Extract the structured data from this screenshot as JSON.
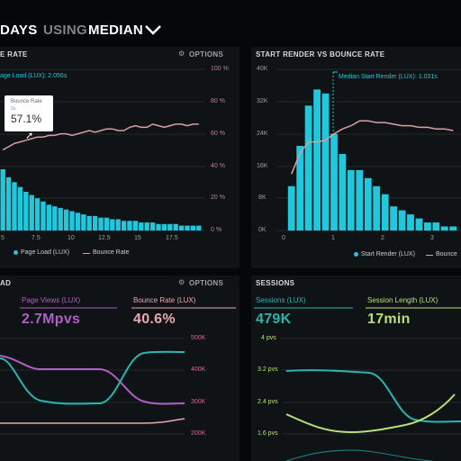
{
  "header": {
    "days": "DAYS",
    "using": "USING",
    "median": "MEDIAN",
    "chevron": "chevron-down"
  },
  "panel_bounce": {
    "title": "E RATE",
    "options": "OPTIONS",
    "subtitle": "age Load (LUX): 2.056s",
    "tooltip_label": "Bounce Rate",
    "tooltip_sub": "2s",
    "tooltip_value": "57.1%",
    "legend": [
      "Page Load (LUX)",
      "Bounce Rate"
    ],
    "x_ticks": [
      "5",
      "7.5",
      "10",
      "12.5",
      "15",
      "17.5"
    ],
    "y_right_ticks": [
      "100 %",
      "80 %",
      "60 %",
      "40 %",
      "20 %",
      "0 %"
    ]
  },
  "panel_render": {
    "title": "START RENDER VS BOUNCE RATE",
    "median_label": "Median Start Render (LUX): 1.031s",
    "legend": [
      "Start Render (LUX)",
      "Bounce"
    ],
    "x_ticks": [
      "0",
      "1",
      "2",
      "3"
    ],
    "y_left_ticks": [
      "40K",
      "32K",
      "24K",
      "16K",
      "8K",
      "0K"
    ]
  },
  "panel_views": {
    "title": "AD",
    "options": "OPTIONS",
    "metric1_label": "Page Views (LUX)",
    "metric1_value": "2.7Mpvs",
    "metric2_label": "Bounce Rate (LUX)",
    "metric2_value": "40.6%",
    "y_right_ticks": [
      "500K",
      "400K",
      "300K",
      "200K"
    ]
  },
  "panel_sessions": {
    "title": "SESSIONS",
    "metric1_label": "Sessions (LUX)",
    "metric1_value": "479K",
    "metric2_label": "Session Length (LUX)",
    "metric2_value": "17min",
    "y_left_ticks": [
      "4 pvs",
      "3.2 pvs",
      "2.4 pvs",
      "1.6 pvs"
    ]
  },
  "colors": {
    "cyan": "#1fc8dc",
    "pink": "#d8a0a4",
    "purple": "#b05fc4",
    "teal": "#28b6b0",
    "green": "#b8e07a",
    "label": "#9aa0a6"
  },
  "chart_data": [
    {
      "type": "bar",
      "title": "",
      "series": [
        {
          "name": "Page Load (LUX)",
          "values": [
            38,
            33,
            30,
            27,
            24,
            22,
            20,
            18,
            16,
            15,
            14,
            13,
            12,
            11,
            10,
            9,
            9,
            8,
            8,
            7,
            7,
            6,
            6,
            6,
            5,
            5,
            5,
            4,
            4,
            4,
            4,
            3,
            3,
            3,
            3
          ]
        },
        {
          "name": "Bounce Rate",
          "values": [
            50,
            52,
            54,
            55,
            56,
            57,
            58,
            58,
            59,
            59,
            60,
            60,
            59,
            60,
            61,
            62,
            61,
            62,
            63,
            63,
            62,
            62,
            64,
            65,
            64,
            64,
            66,
            65,
            64,
            65,
            66,
            66,
            65,
            66,
            66
          ]
        }
      ],
      "xlim": [
        3.5,
        19.5
      ],
      "ylim": [
        0,
        100
      ],
      "ylabel": ""
    },
    {
      "type": "bar",
      "title": "START RENDER VS BOUNCE RATE",
      "series": [
        {
          "name": "Start Render (LUX)",
          "values": [
            11,
            21,
            31,
            35,
            34,
            24,
            19,
            15,
            15,
            13,
            11,
            9,
            6,
            5,
            4,
            3,
            2,
            2,
            1,
            1
          ]
        },
        {
          "name": "Bounce",
          "values": [
            0.35,
            0.48,
            0.55,
            0.55,
            0.56,
            0.6,
            0.63,
            0.65,
            0.68,
            0.68,
            0.67,
            0.67,
            0.66,
            0.65,
            0.65,
            0.64,
            0.64,
            0.63,
            0.63,
            0.62
          ]
        }
      ],
      "xlim": [
        0,
        3.4
      ],
      "ylim": [
        0,
        40
      ]
    }
  ]
}
